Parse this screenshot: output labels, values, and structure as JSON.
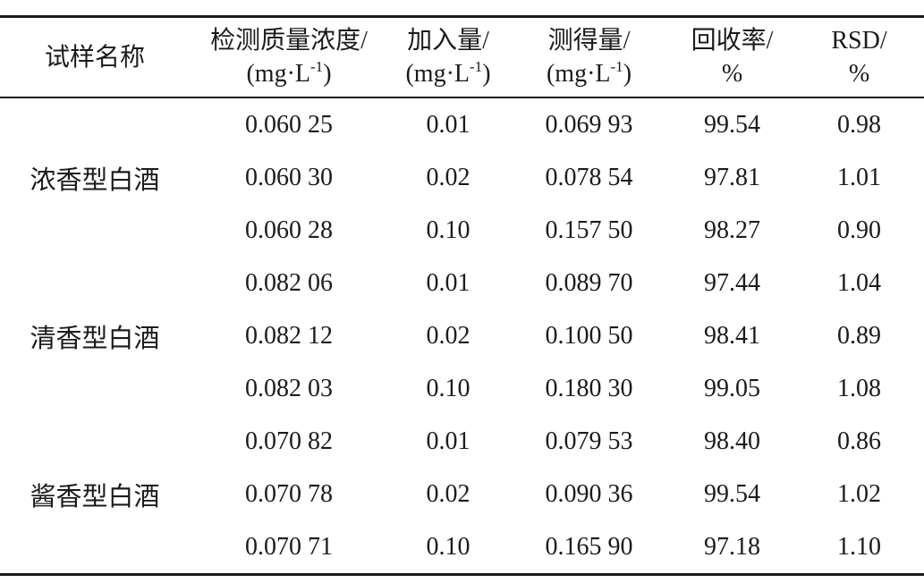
{
  "chart_data": {
    "type": "table",
    "columns": [
      {
        "id": "sample",
        "line1": "试样名称"
      },
      {
        "id": "detected",
        "line1": "检测质量浓度/",
        "unit_open": "(mg·L",
        "unit_sup": "-1",
        "unit_close": ")"
      },
      {
        "id": "added",
        "line1": "加入量/",
        "unit_open": "(mg·L",
        "unit_sup": "-1",
        "unit_close": ")"
      },
      {
        "id": "measured",
        "line1": "测得量/",
        "unit_open": "(mg·L",
        "unit_sup": "-1",
        "unit_close": ")"
      },
      {
        "id": "recovery",
        "line1": "回收率/",
        "line2": "%"
      },
      {
        "id": "rsd",
        "line1": "RSD/",
        "line2": "%"
      }
    ],
    "groups": [
      {
        "sample": "浓香型白酒",
        "rows": [
          [
            "0.060 25",
            "0.01",
            "0.069 93",
            "99.54",
            "0.98"
          ],
          [
            "0.060 30",
            "0.02",
            "0.078 54",
            "97.81",
            "1.01"
          ],
          [
            "0.060 28",
            "0.10",
            "0.157 50",
            "98.27",
            "0.90"
          ]
        ]
      },
      {
        "sample": "清香型白酒",
        "rows": [
          [
            "0.082 06",
            "0.01",
            "0.089 70",
            "97.44",
            "1.04"
          ],
          [
            "0.082 12",
            "0.02",
            "0.100 50",
            "98.41",
            "0.89"
          ],
          [
            "0.082 03",
            "0.10",
            "0.180 30",
            "99.05",
            "1.08"
          ]
        ]
      },
      {
        "sample": "酱香型白酒",
        "rows": [
          [
            "0.070 82",
            "0.01",
            "0.079 53",
            "98.40",
            "0.86"
          ],
          [
            "0.070 78",
            "0.02",
            "0.090 36",
            "99.54",
            "1.02"
          ],
          [
            "0.070 71",
            "0.10",
            "0.165 90",
            "97.18",
            "1.10"
          ]
        ]
      }
    ],
    "colors": {
      "text": "#1b1b1b",
      "rule": "#1b1b1b",
      "background": "#ffffff"
    }
  }
}
